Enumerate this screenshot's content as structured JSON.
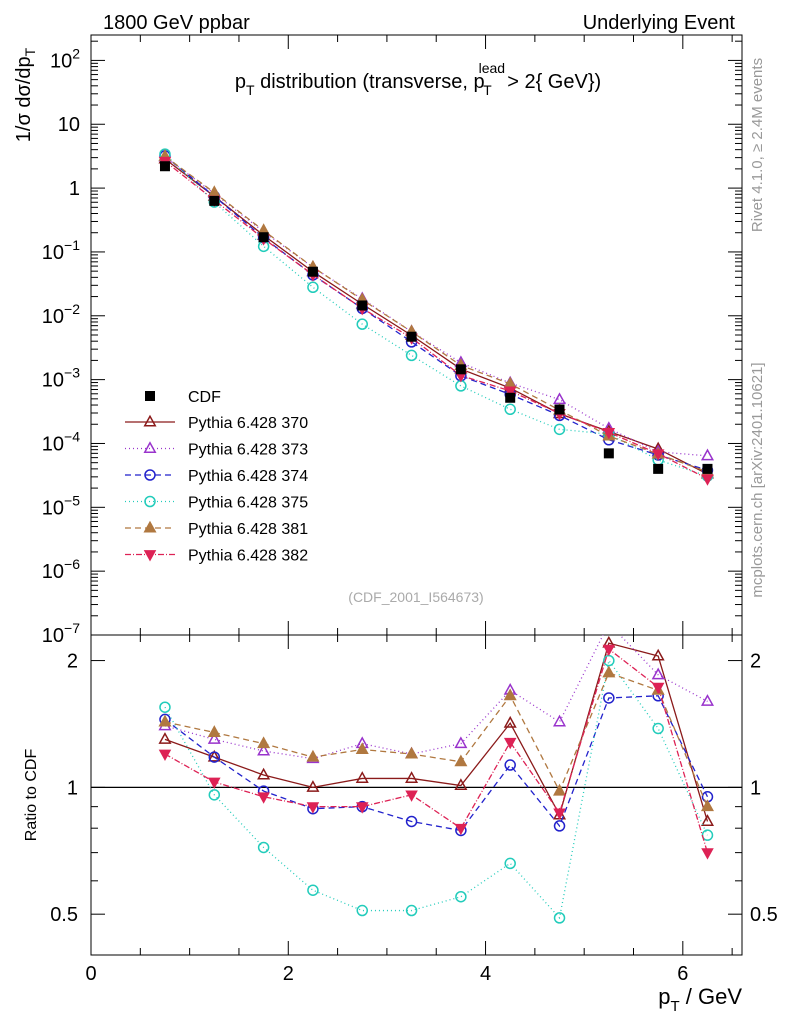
{
  "header": {
    "left": "1800 GeV ppbar",
    "right": "Underlying Event"
  },
  "side_labels": {
    "rivet": "Rivet 4.1.0, ≥ 2.4M events",
    "mcplots": "mcplots.cern.ch [arXiv:2401.10621]"
  },
  "chart_data": {
    "type": "scatter",
    "title": "p_T distribution (transverse, p_T^lead > 2{ GeV})",
    "title_parts": {
      "p": "p",
      "t": "T",
      "mid": " distribution (transverse, p",
      "lead": "lead",
      "sub2": "T",
      "end": " > 2{ GeV})"
    },
    "watermark": "(CDF_2001_I564673)",
    "ylabel_main": "1/σ  dσ/dp_T",
    "ylabel_ratio": "Ratio to CDF",
    "xlabel": "p_T / GeV",
    "xlim": [
      0,
      6.6
    ],
    "ylim_main": [
      1e-07,
      250
    ],
    "ylim_ratio": [
      0.4,
      2.3
    ],
    "x_ticks": [
      0,
      2,
      4,
      6
    ],
    "main_y_ticks": [
      {
        "v": 1e-07,
        "b": "10",
        "e": "−7"
      },
      {
        "v": 1e-06,
        "b": "10",
        "e": "−6"
      },
      {
        "v": 1e-05,
        "b": "10",
        "e": "−5"
      },
      {
        "v": 0.0001,
        "b": "10",
        "e": "−4"
      },
      {
        "v": 0.001,
        "b": "10",
        "e": "−3"
      },
      {
        "v": 0.01,
        "b": "10",
        "e": "−2"
      },
      {
        "v": 0.1,
        "b": "10",
        "e": "−1"
      },
      {
        "v": 1,
        "b": "1",
        "e": ""
      },
      {
        "v": 10,
        "b": "10",
        "e": ""
      },
      {
        "v": 100,
        "b": "10",
        "e": "2"
      }
    ],
    "ratio_y_ticks": [
      0.5,
      1,
      2
    ],
    "x": [
      0.75,
      1.25,
      1.75,
      2.25,
      2.75,
      3.25,
      3.75,
      4.25,
      4.75,
      5.25,
      5.75,
      6.25
    ],
    "data": {
      "name": "CDF",
      "values": [
        2.2,
        0.63,
        0.17,
        0.049,
        0.0145,
        0.0047,
        0.00145,
        0.00052,
        0.00034,
        7e-05,
        4e-05,
        4e-05
      ]
    },
    "series": [
      {
        "name": "Pythia 6.428 370",
        "color": "#8b1a1a",
        "marker": "triangle-up-open",
        "dash": "",
        "ratio": [
          1.3,
          1.18,
          1.07,
          1.0,
          1.05,
          1.05,
          1.01,
          1.42,
          0.86,
          2.2,
          2.05,
          0.83
        ]
      },
      {
        "name": "Pythia 6.428 373",
        "color": "#9933cc",
        "marker": "triangle-up-open",
        "dash": "1,3",
        "ratio": [
          1.4,
          1.3,
          1.22,
          1.17,
          1.27,
          1.2,
          1.27,
          1.7,
          1.43,
          2.45,
          1.85,
          1.6
        ]
      },
      {
        "name": "Pythia 6.428 374",
        "color": "#2222cc",
        "marker": "circle-open",
        "dash": "6,4",
        "ratio": [
          1.45,
          1.18,
          0.98,
          0.89,
          0.9,
          0.83,
          0.79,
          1.13,
          0.81,
          1.63,
          1.65,
          0.95
        ]
      },
      {
        "name": "Pythia 6.428 375",
        "color": "#22ccbb",
        "marker": "circle-open",
        "dash": "1,3",
        "ratio": [
          1.55,
          0.96,
          0.72,
          0.57,
          0.51,
          0.51,
          0.55,
          0.66,
          0.49,
          2.0,
          1.38,
          0.77
        ]
      },
      {
        "name": "Pythia 6.428 381",
        "color": "#b07840",
        "marker": "triangle-up-filled",
        "dash": "6,4",
        "ratio": [
          1.43,
          1.35,
          1.27,
          1.18,
          1.23,
          1.2,
          1.15,
          1.65,
          0.98,
          1.87,
          1.7,
          0.9
        ]
      },
      {
        "name": "Pythia 6.428 382",
        "color": "#dd2255",
        "marker": "triangle-down-filled",
        "dash": "6,2,1,2",
        "ratio": [
          1.2,
          1.03,
          0.95,
          0.9,
          0.9,
          0.96,
          0.8,
          1.28,
          0.87,
          2.13,
          1.73,
          0.7
        ]
      }
    ]
  }
}
